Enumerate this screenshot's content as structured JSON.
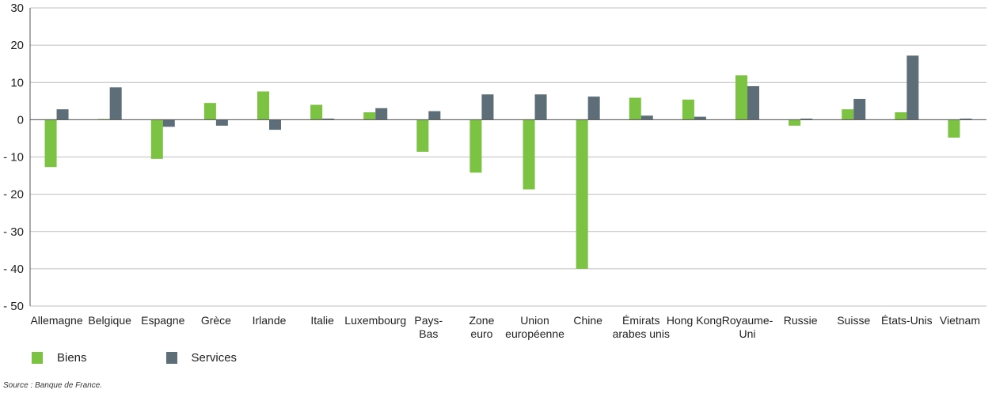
{
  "colors": {
    "biens": "#7cc243",
    "services": "#5d6e78",
    "grid": "#bfbfbf",
    "axis": "#555555"
  },
  "legend": [
    {
      "name": "Biens",
      "color": "#7cc243"
    },
    {
      "name": "Services",
      "color": "#5d6e78"
    }
  ],
  "source": "Source : Banque de France.",
  "chart_data": {
    "type": "bar",
    "title": "",
    "xlabel": "",
    "ylabel": "",
    "ylim": [
      -50,
      30
    ],
    "yticks": [
      30,
      20,
      10,
      0,
      -10,
      -20,
      -30,
      -40,
      -50
    ],
    "ytick_labels": [
      "30",
      "20",
      "10",
      "0",
      "- 10",
      "- 20",
      "- 30",
      "- 40",
      "- 50"
    ],
    "grid": true,
    "legend_position": "bottom-left",
    "categories": [
      [
        "Allemagne"
      ],
      [
        "Belgique"
      ],
      [
        "Espagne"
      ],
      [
        "Grèce"
      ],
      [
        "Irlande"
      ],
      [
        "Italie"
      ],
      [
        "Luxembourg"
      ],
      [
        "Pays-",
        "Bas"
      ],
      [
        "Zone",
        "euro"
      ],
      [
        "Union",
        "européenne"
      ],
      [
        "Chine"
      ],
      [
        "Émirats",
        "arabes unis"
      ],
      [
        "Hong Kong"
      ],
      [
        "Royaume-",
        "Uni"
      ],
      [
        "Russie"
      ],
      [
        "Suisse"
      ],
      [
        "États-Unis"
      ],
      [
        "Vietnam"
      ]
    ],
    "series": [
      {
        "name": "Biens",
        "values": [
          -12.7,
          0.2,
          -10.5,
          4.5,
          7.6,
          4.0,
          2.0,
          -8.6,
          -14.2,
          -18.7,
          -40.0,
          5.9,
          5.4,
          11.9,
          -1.6,
          2.8,
          2.0,
          -4.8
        ]
      },
      {
        "name": "Services",
        "values": [
          2.8,
          8.7,
          -1.9,
          -1.6,
          -2.7,
          0.3,
          3.1,
          2.3,
          6.8,
          6.8,
          6.2,
          1.1,
          0.8,
          9.0,
          0.3,
          5.6,
          17.2,
          0.3
        ]
      }
    ]
  }
}
